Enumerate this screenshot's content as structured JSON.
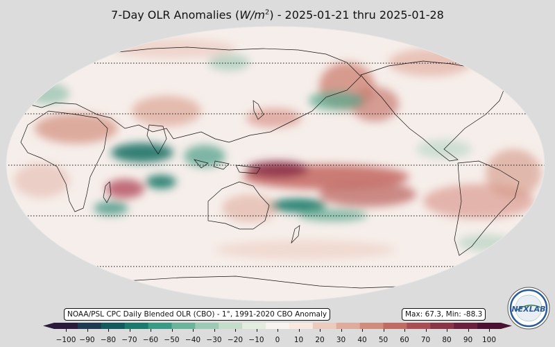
{
  "title": {
    "prefix": "7-Day OLR Anomalies (",
    "unit_main": "W/m",
    "unit_exp": "2",
    "suffix": ") - 2025-01-21 thru 2025-01-28"
  },
  "source_label": "NOAA/PSL CPC Daily Blended OLR (CBO) - 1°, 1991-2020 CBO Anomaly",
  "stats_label": "Max: 67.3,  Min: -88.3",
  "colorbar": {
    "ticks": [
      "−100",
      "−90",
      "−80",
      "−70",
      "−60",
      "−50",
      "−40",
      "−30",
      "−20",
      "−10",
      "0",
      "10",
      "20",
      "30",
      "40",
      "50",
      "60",
      "70",
      "80",
      "90",
      "100"
    ],
    "colors": [
      "#2a1a3c",
      "#1e3a52",
      "#135a5e",
      "#1a7a6e",
      "#3a9a84",
      "#6ab49c",
      "#9ccab4",
      "#c4ddc8",
      "#e2ede0",
      "#f7f3ef",
      "#f8e8e0",
      "#eccabe",
      "#dfab9c",
      "#d08c7c",
      "#c06c64",
      "#a84e54",
      "#8a3448",
      "#6a203c",
      "#4a1230"
    ]
  },
  "logo": {
    "text": "NEXLAB"
  },
  "colors": {
    "background": "#dcdcdc",
    "ocean": "#f6eeea"
  }
}
